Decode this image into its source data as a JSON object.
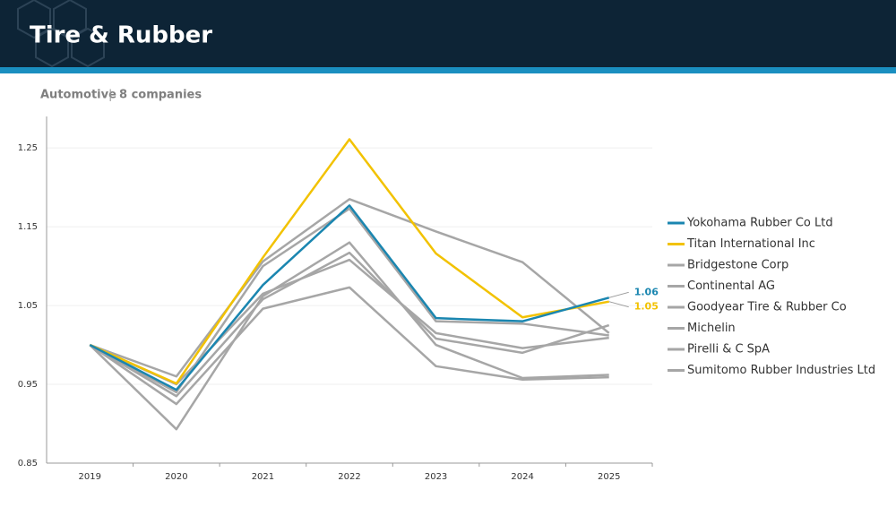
{
  "header": {
    "category": "Automotive",
    "count": "8 companies"
  },
  "chart_data": {
    "type": "line",
    "title": "Tire & Rubber",
    "categories": [
      "2019",
      "2020",
      "2021",
      "2022",
      "2023",
      "2024",
      "2025"
    ],
    "ylim": [
      0.85,
      1.29
    ],
    "yticks": [
      0.85,
      0.95,
      1.05,
      1.15,
      1.25
    ],
    "grid": true,
    "legend": "right",
    "series": [
      {
        "name": "Yokohama Rubber Co Ltd",
        "color": "#1a86b0",
        "values": [
          1.0,
          0.943,
          1.076,
          1.177,
          1.034,
          1.03,
          1.06
        ],
        "value_labels": [
          null,
          null,
          null,
          null,
          null,
          null,
          "1.06"
        ]
      },
      {
        "name": "Titan International Inc",
        "color": "#f2c200",
        "values": [
          1.0,
          0.951,
          1.111,
          1.261,
          1.116,
          1.035,
          1.055
        ],
        "value_labels": [
          null,
          null,
          null,
          null,
          null,
          null,
          "1.05"
        ]
      },
      {
        "name": "Bridgestone Corp",
        "color": "#a6a6a6",
        "values": [
          1.0,
          0.96,
          1.106,
          1.185,
          1.144,
          1.105,
          1.015
        ]
      },
      {
        "name": "Continental AG",
        "color": "#a6a6a6",
        "values": [
          1.0,
          0.893,
          1.062,
          1.13,
          1.0,
          0.958,
          0.962
        ]
      },
      {
        "name": "Goodyear Tire & Rubber Co",
        "color": "#a6a6a6",
        "values": [
          1.0,
          0.925,
          1.046,
          1.073,
          0.973,
          0.956,
          0.959
        ]
      },
      {
        "name": "Michelin",
        "color": "#a6a6a6",
        "values": [
          1.0,
          0.935,
          1.058,
          1.117,
          1.008,
          0.99,
          1.025
        ]
      },
      {
        "name": "Pirelli & C SpA",
        "color": "#a6a6a6",
        "values": [
          1.0,
          0.94,
          1.1,
          1.173,
          1.03,
          1.027,
          1.012
        ]
      },
      {
        "name": "Sumitomo Rubber Industries Ltd",
        "color": "#a6a6a6",
        "values": [
          1.0,
          0.95,
          1.065,
          1.108,
          1.015,
          0.996,
          1.009
        ]
      }
    ]
  }
}
